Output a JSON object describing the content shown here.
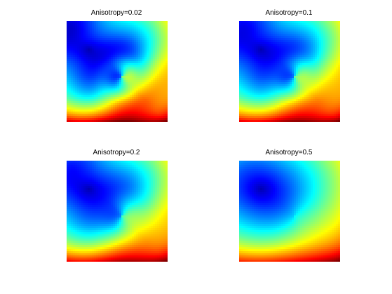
{
  "chart_data": [
    {
      "type": "heatmap",
      "title": "Anisotropy=0.02",
      "colormap": "jet",
      "anisotropy": 0.02,
      "axes_visible": false,
      "grid": false,
      "legend": "none"
    },
    {
      "type": "heatmap",
      "title": "Anisotropy=0.1",
      "colormap": "jet",
      "anisotropy": 0.1,
      "axes_visible": false,
      "grid": false,
      "legend": "none"
    },
    {
      "type": "heatmap",
      "title": "Anisotropy=0.2",
      "colormap": "jet",
      "anisotropy": 0.2,
      "axes_visible": false,
      "grid": false,
      "legend": "none"
    },
    {
      "type": "heatmap",
      "title": "Anisotropy=0.5",
      "colormap": "jet",
      "anisotropy": 0.5,
      "axes_visible": false,
      "grid": false,
      "legend": "none"
    }
  ]
}
